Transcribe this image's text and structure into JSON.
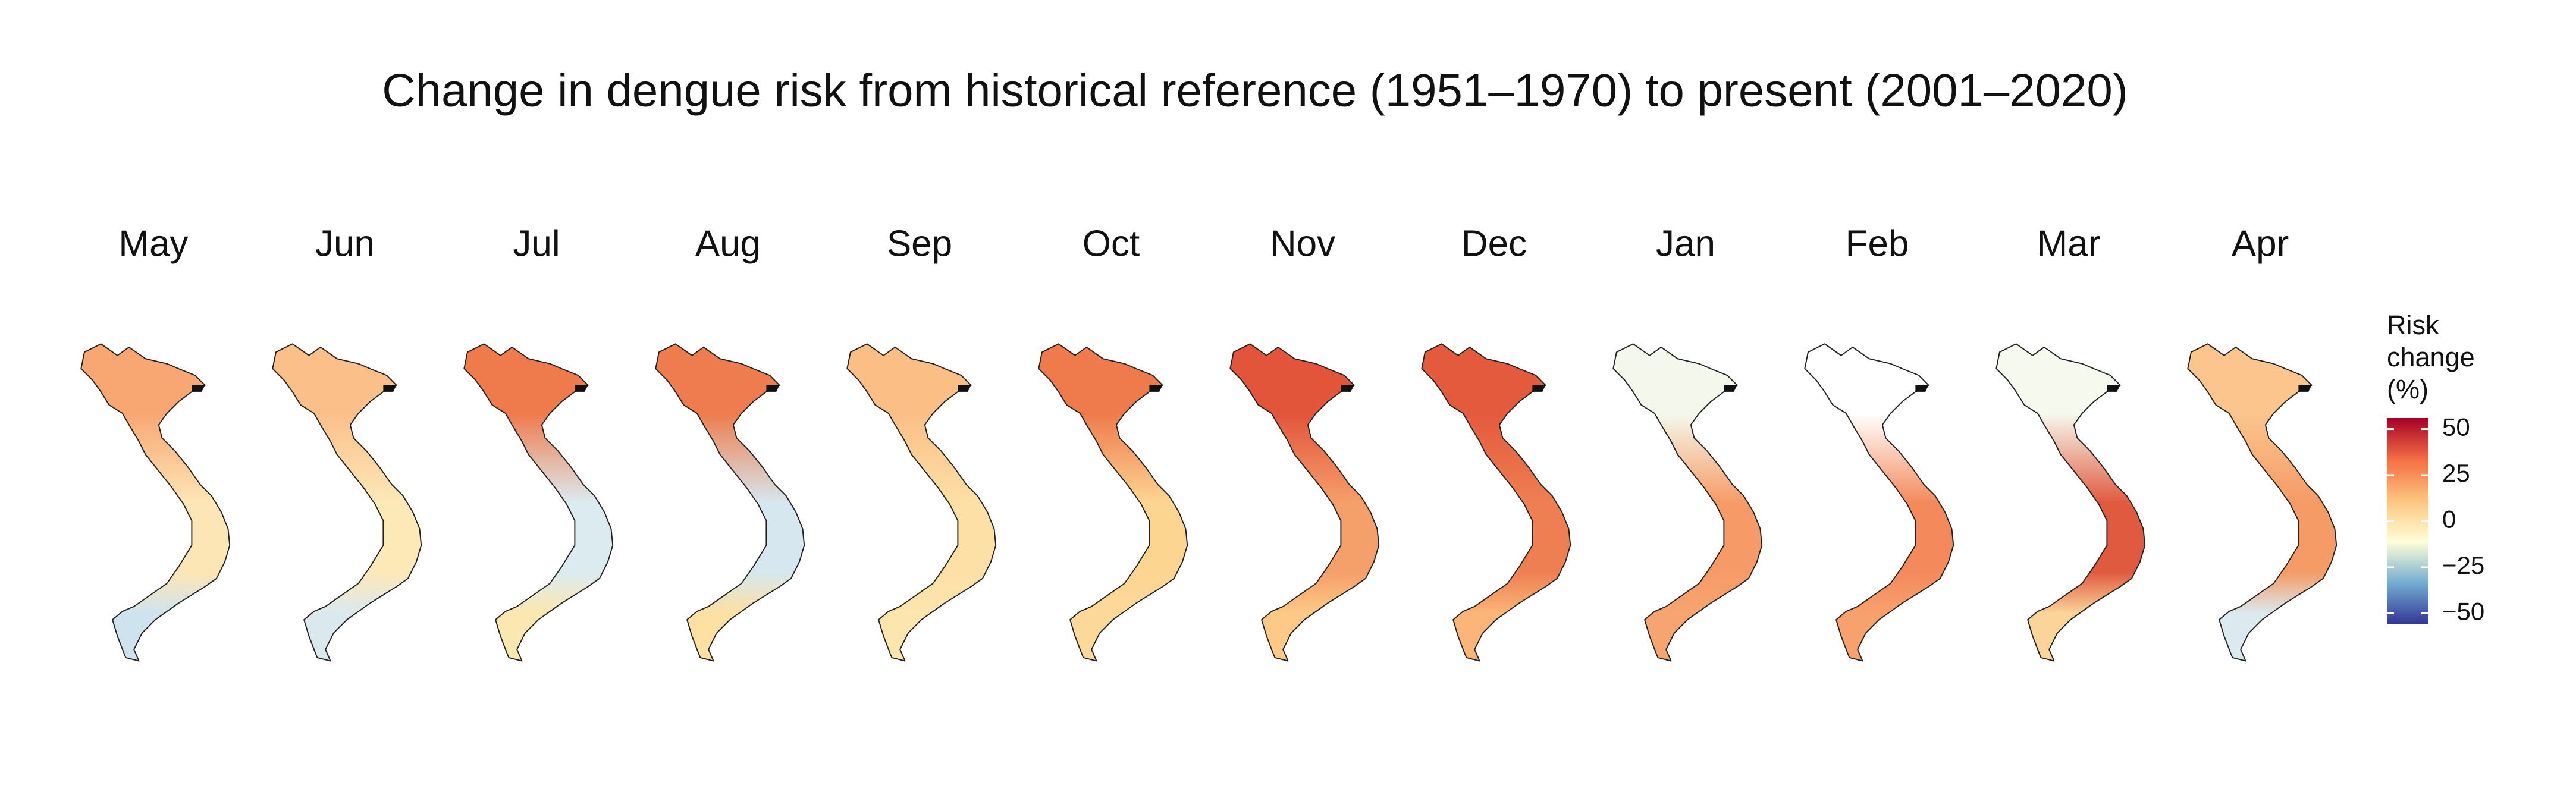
{
  "title": "Change in dengue risk from historical reference (1951–1970) to present (2001–2020)",
  "panels": [
    {
      "label": "May",
      "colors": [
        "#f8a773",
        "#fde6b5",
        "#cfe3ee"
      ]
    },
    {
      "label": "Jun",
      "colors": [
        "#fbc08a",
        "#fde8b8",
        "#dbe9ee"
      ]
    },
    {
      "label": "Jul",
      "colors": [
        "#ef7a4c",
        "#dcebf0",
        "#fbe7b0"
      ]
    },
    {
      "label": "Aug",
      "colors": [
        "#ee7c4e",
        "#d6e7ef",
        "#fde1a2"
      ]
    },
    {
      "label": "Sep",
      "colors": [
        "#fbbf86",
        "#fde0a6",
        "#fde5ae"
      ]
    },
    {
      "label": "Oct",
      "colors": [
        "#ef7a4c",
        "#fcd591",
        "#fdd999"
      ]
    },
    {
      "label": "Nov",
      "colors": [
        "#e2553a",
        "#f59f6a",
        "#fdc986"
      ]
    },
    {
      "label": "Dec",
      "colors": [
        "#e35a3c",
        "#ee7f52",
        "#fbb578"
      ]
    },
    {
      "label": "Jan",
      "colors": [
        "#f4f8ec",
        "#f69b67",
        "#f6a570"
      ]
    },
    {
      "label": "Feb",
      "colors": [
        "#ffffff",
        "#f48a5c",
        "#f7a16c"
      ]
    },
    {
      "label": "Mar",
      "colors": [
        "#f6f9ee",
        "#e05a40",
        "#fbd49a"
      ]
    },
    {
      "label": "Apr",
      "colors": [
        "#fbc58d",
        "#f59b66",
        "#dce9ef"
      ]
    }
  ],
  "legend": {
    "title": [
      "Risk",
      "change",
      "(%)"
    ],
    "lim": [
      -56,
      56
    ],
    "ticks": [
      50,
      25,
      0,
      {
        "value": -25,
        "label": "−25"
      },
      {
        "value": -50,
        "label": "−50"
      }
    ],
    "colors": [
      "#313695",
      "#74add1",
      "#fefed8",
      "#fdc57f",
      "#f46d43",
      "#a50026"
    ]
  }
}
